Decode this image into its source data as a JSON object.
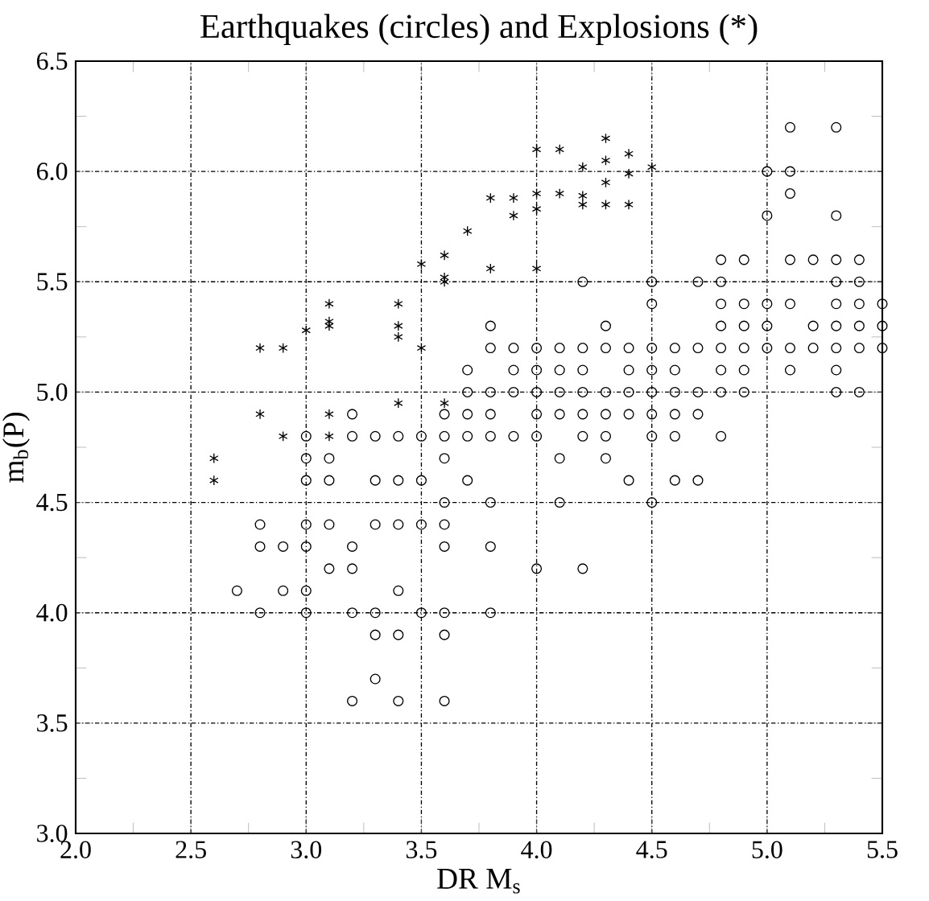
{
  "chart_data": {
    "type": "scatter",
    "title": "Earthquakes (circles) and Explosions (*)",
    "xlabel": "DR M$_{s}$",
    "ylabel": "m$_{b}$(P)",
    "xlim": [
      2.0,
      5.5
    ],
    "ylim": [
      3.0,
      6.5
    ],
    "xticks": [
      {
        "value": 2.0,
        "label": "2.0"
      },
      {
        "value": 2.5,
        "label": "2.5"
      },
      {
        "value": 3.0,
        "label": "3.0"
      },
      {
        "value": 3.5,
        "label": "3.5"
      },
      {
        "value": 4.0,
        "label": "4.0"
      },
      {
        "value": 4.5,
        "label": "4.5"
      },
      {
        "value": 5.0,
        "label": "5.0"
      },
      {
        "value": 5.5,
        "label": "5.5"
      }
    ],
    "yticks": [
      {
        "value": 3.0,
        "label": "3.0"
      },
      {
        "value": 3.5,
        "label": "3.5"
      },
      {
        "value": 4.0,
        "label": "4.0"
      },
      {
        "value": 4.5,
        "label": "4.5"
      },
      {
        "value": 5.0,
        "label": "5.0"
      },
      {
        "value": 5.5,
        "label": "5.5"
      },
      {
        "value": 6.0,
        "label": "6.0"
      },
      {
        "value": 6.5,
        "label": "6.5"
      }
    ],
    "grid": true,
    "series": [
      {
        "color": "#000000",
        "marker": "circle",
        "x": [
          3.0,
          3.2,
          3.2,
          3.0,
          3.1,
          3.0,
          3.1,
          2.8,
          3.0,
          3.1,
          2.8,
          2.9,
          3.0,
          3.2,
          3.1,
          3.2,
          2.7,
          2.9,
          3.0,
          2.8,
          3.0,
          3.2,
          3.2,
          3.7,
          3.8,
          3.9,
          4.0,
          4.1,
          4.2,
          4.3,
          3.6,
          3.7,
          3.8,
          4.0,
          4.1,
          4.2,
          4.3,
          3.3,
          3.4,
          3.5,
          3.6,
          3.7,
          3.8,
          3.9,
          4.0,
          4.2,
          4.3,
          3.6,
          4.1,
          4.3,
          3.3,
          3.4,
          3.5,
          3.7,
          3.6,
          3.8,
          4.1,
          3.3,
          3.4,
          3.5,
          3.6,
          3.6,
          3.8,
          4.0,
          4.2,
          3.4,
          3.3,
          3.5,
          3.6,
          3.8,
          3.3,
          3.4,
          3.6,
          3.3,
          3.4,
          3.6,
          4.4,
          4.5,
          4.6,
          4.7,
          4.8,
          4.9,
          5.3,
          5.4,
          4.4,
          4.5,
          4.6,
          4.7,
          4.5,
          4.6,
          4.8,
          4.4,
          4.6,
          4.7,
          4.5,
          5.0,
          5.1,
          5.3,
          5.1,
          5.1,
          5.0,
          5.3,
          4.2,
          4.5,
          4.7,
          4.8,
          4.8,
          4.9,
          5.1,
          5.2,
          5.3,
          5.4,
          5.3,
          5.4,
          4.5,
          4.8,
          4.9,
          5.0,
          5.1,
          5.3,
          5.4,
          5.5,
          3.8,
          4.3,
          4.8,
          4.9,
          5.0,
          5.2,
          5.3,
          5.4,
          5.5,
          3.8,
          3.9,
          4.0,
          4.1,
          4.2,
          4.3,
          4.4,
          4.5,
          4.6,
          4.7,
          4.8,
          4.9,
          5.0,
          5.1,
          5.2,
          5.3,
          5.4,
          5.5,
          3.7,
          3.9,
          4.0,
          4.1,
          4.2,
          4.4,
          4.5,
          4.6,
          4.8,
          4.9,
          5.1,
          5.3
        ],
        "values": [
          4.8,
          4.9,
          4.8,
          4.7,
          4.7,
          4.6,
          4.6,
          4.4,
          4.4,
          4.4,
          4.3,
          4.3,
          4.3,
          4.3,
          4.2,
          4.2,
          4.1,
          4.1,
          4.1,
          4.0,
          4.0,
          4.0,
          3.6,
          5.0,
          5.0,
          5.0,
          5.0,
          5.0,
          5.0,
          5.0,
          4.9,
          4.9,
          4.9,
          4.9,
          4.9,
          4.9,
          4.9,
          4.8,
          4.8,
          4.8,
          4.8,
          4.8,
          4.8,
          4.8,
          4.8,
          4.8,
          4.8,
          4.7,
          4.7,
          4.7,
          4.6,
          4.6,
          4.6,
          4.6,
          4.5,
          4.5,
          4.5,
          4.4,
          4.4,
          4.4,
          4.4,
          4.3,
          4.3,
          4.2,
          4.2,
          4.1,
          4.0,
          4.0,
          4.0,
          4.0,
          3.9,
          3.9,
          3.9,
          3.7,
          3.6,
          3.6,
          5.0,
          5.0,
          5.0,
          5.0,
          5.0,
          5.0,
          5.0,
          5.0,
          4.9,
          4.9,
          4.9,
          4.9,
          4.8,
          4.8,
          4.8,
          4.6,
          4.6,
          4.6,
          4.5,
          6.0,
          6.2,
          6.2,
          6.0,
          5.9,
          5.8,
          5.8,
          5.5,
          5.5,
          5.5,
          5.5,
          5.6,
          5.6,
          5.6,
          5.6,
          5.6,
          5.6,
          5.5,
          5.5,
          5.4,
          5.4,
          5.4,
          5.4,
          5.4,
          5.4,
          5.4,
          5.4,
          5.3,
          5.3,
          5.3,
          5.3,
          5.3,
          5.3,
          5.3,
          5.3,
          5.3,
          5.2,
          5.2,
          5.2,
          5.2,
          5.2,
          5.2,
          5.2,
          5.2,
          5.2,
          5.2,
          5.2,
          5.2,
          5.2,
          5.2,
          5.2,
          5.2,
          5.2,
          5.2,
          5.1,
          5.1,
          5.1,
          5.1,
          5.1,
          5.1,
          5.1,
          5.1,
          5.1,
          5.1,
          5.1,
          5.1
        ]
      },
      {
        "color": "#000000",
        "marker": "cross",
        "x": [
          2.6,
          2.6,
          2.8,
          2.9,
          3.1,
          3.1,
          2.8,
          2.9,
          3.0,
          3.1,
          3.1,
          3.1,
          3.4,
          3.4,
          3.4,
          3.5,
          3.5,
          3.4,
          3.6,
          3.6,
          3.6,
          3.6,
          3.7,
          3.8,
          3.8,
          3.9,
          3.9,
          4.0,
          4.0,
          4.0,
          4.0,
          4.1,
          4.1,
          4.2,
          4.2,
          4.2,
          4.3,
          4.3,
          4.3,
          4.3,
          4.4,
          4.4,
          4.4,
          4.5
        ],
        "values": [
          4.7,
          4.6,
          4.9,
          4.8,
          4.9,
          4.8,
          5.2,
          5.2,
          5.28,
          5.4,
          5.32,
          5.3,
          5.4,
          5.3,
          5.25,
          5.58,
          5.2,
          4.95,
          4.95,
          5.62,
          5.52,
          5.5,
          5.73,
          5.88,
          5.56,
          5.88,
          5.8,
          6.1,
          5.9,
          5.83,
          5.56,
          6.1,
          5.9,
          6.02,
          5.89,
          5.85,
          6.15,
          6.05,
          5.95,
          5.85,
          6.08,
          5.99,
          5.85,
          6.02
        ]
      }
    ]
  }
}
